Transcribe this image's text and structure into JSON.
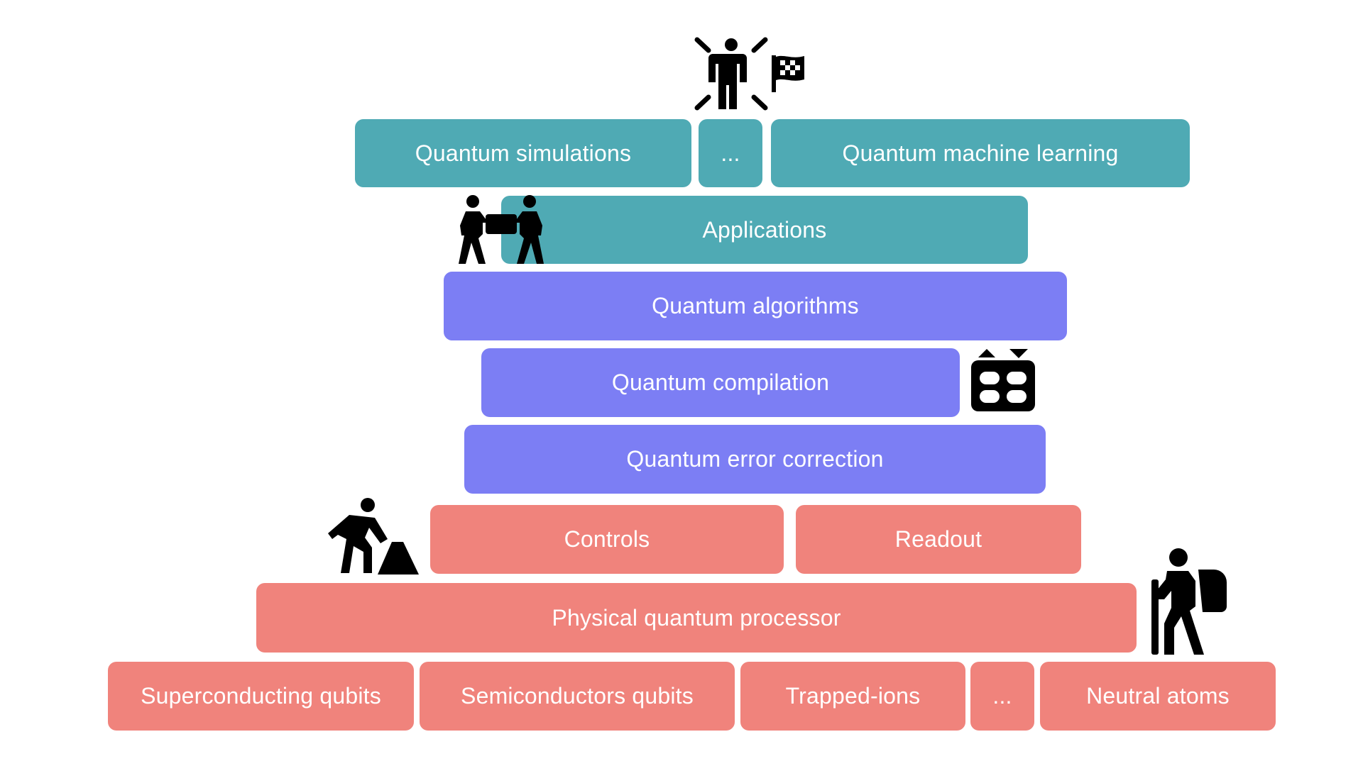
{
  "layers": {
    "top": {
      "left": "Quantum simulations",
      "middle": "...",
      "right": "Quantum machine learning"
    },
    "applications": "Applications",
    "algorithms": "Quantum algorithms",
    "compilation": "Quantum compilation",
    "error_correction": "Quantum error correction",
    "controls": "Controls",
    "readout": "Readout",
    "processor": "Physical quantum processor",
    "platforms": {
      "superconducting": "Superconducting qubits",
      "semiconductors": "Semiconductors qubits",
      "trapped_ions": "Trapped-ions",
      "ellipsis": "...",
      "neutral_atoms": "Neutral atoms"
    }
  },
  "colors": {
    "teal": "#4FAAB4",
    "violet": "#7C7EF4",
    "salmon": "#F0837C",
    "icon": "#000000"
  },
  "icons": [
    "celebrating-person-icon",
    "checkered-flag-icon",
    "two-people-carrying-box-icon",
    "robot-face-icon",
    "person-digging-icon",
    "hiker-with-backpack-icon"
  ]
}
